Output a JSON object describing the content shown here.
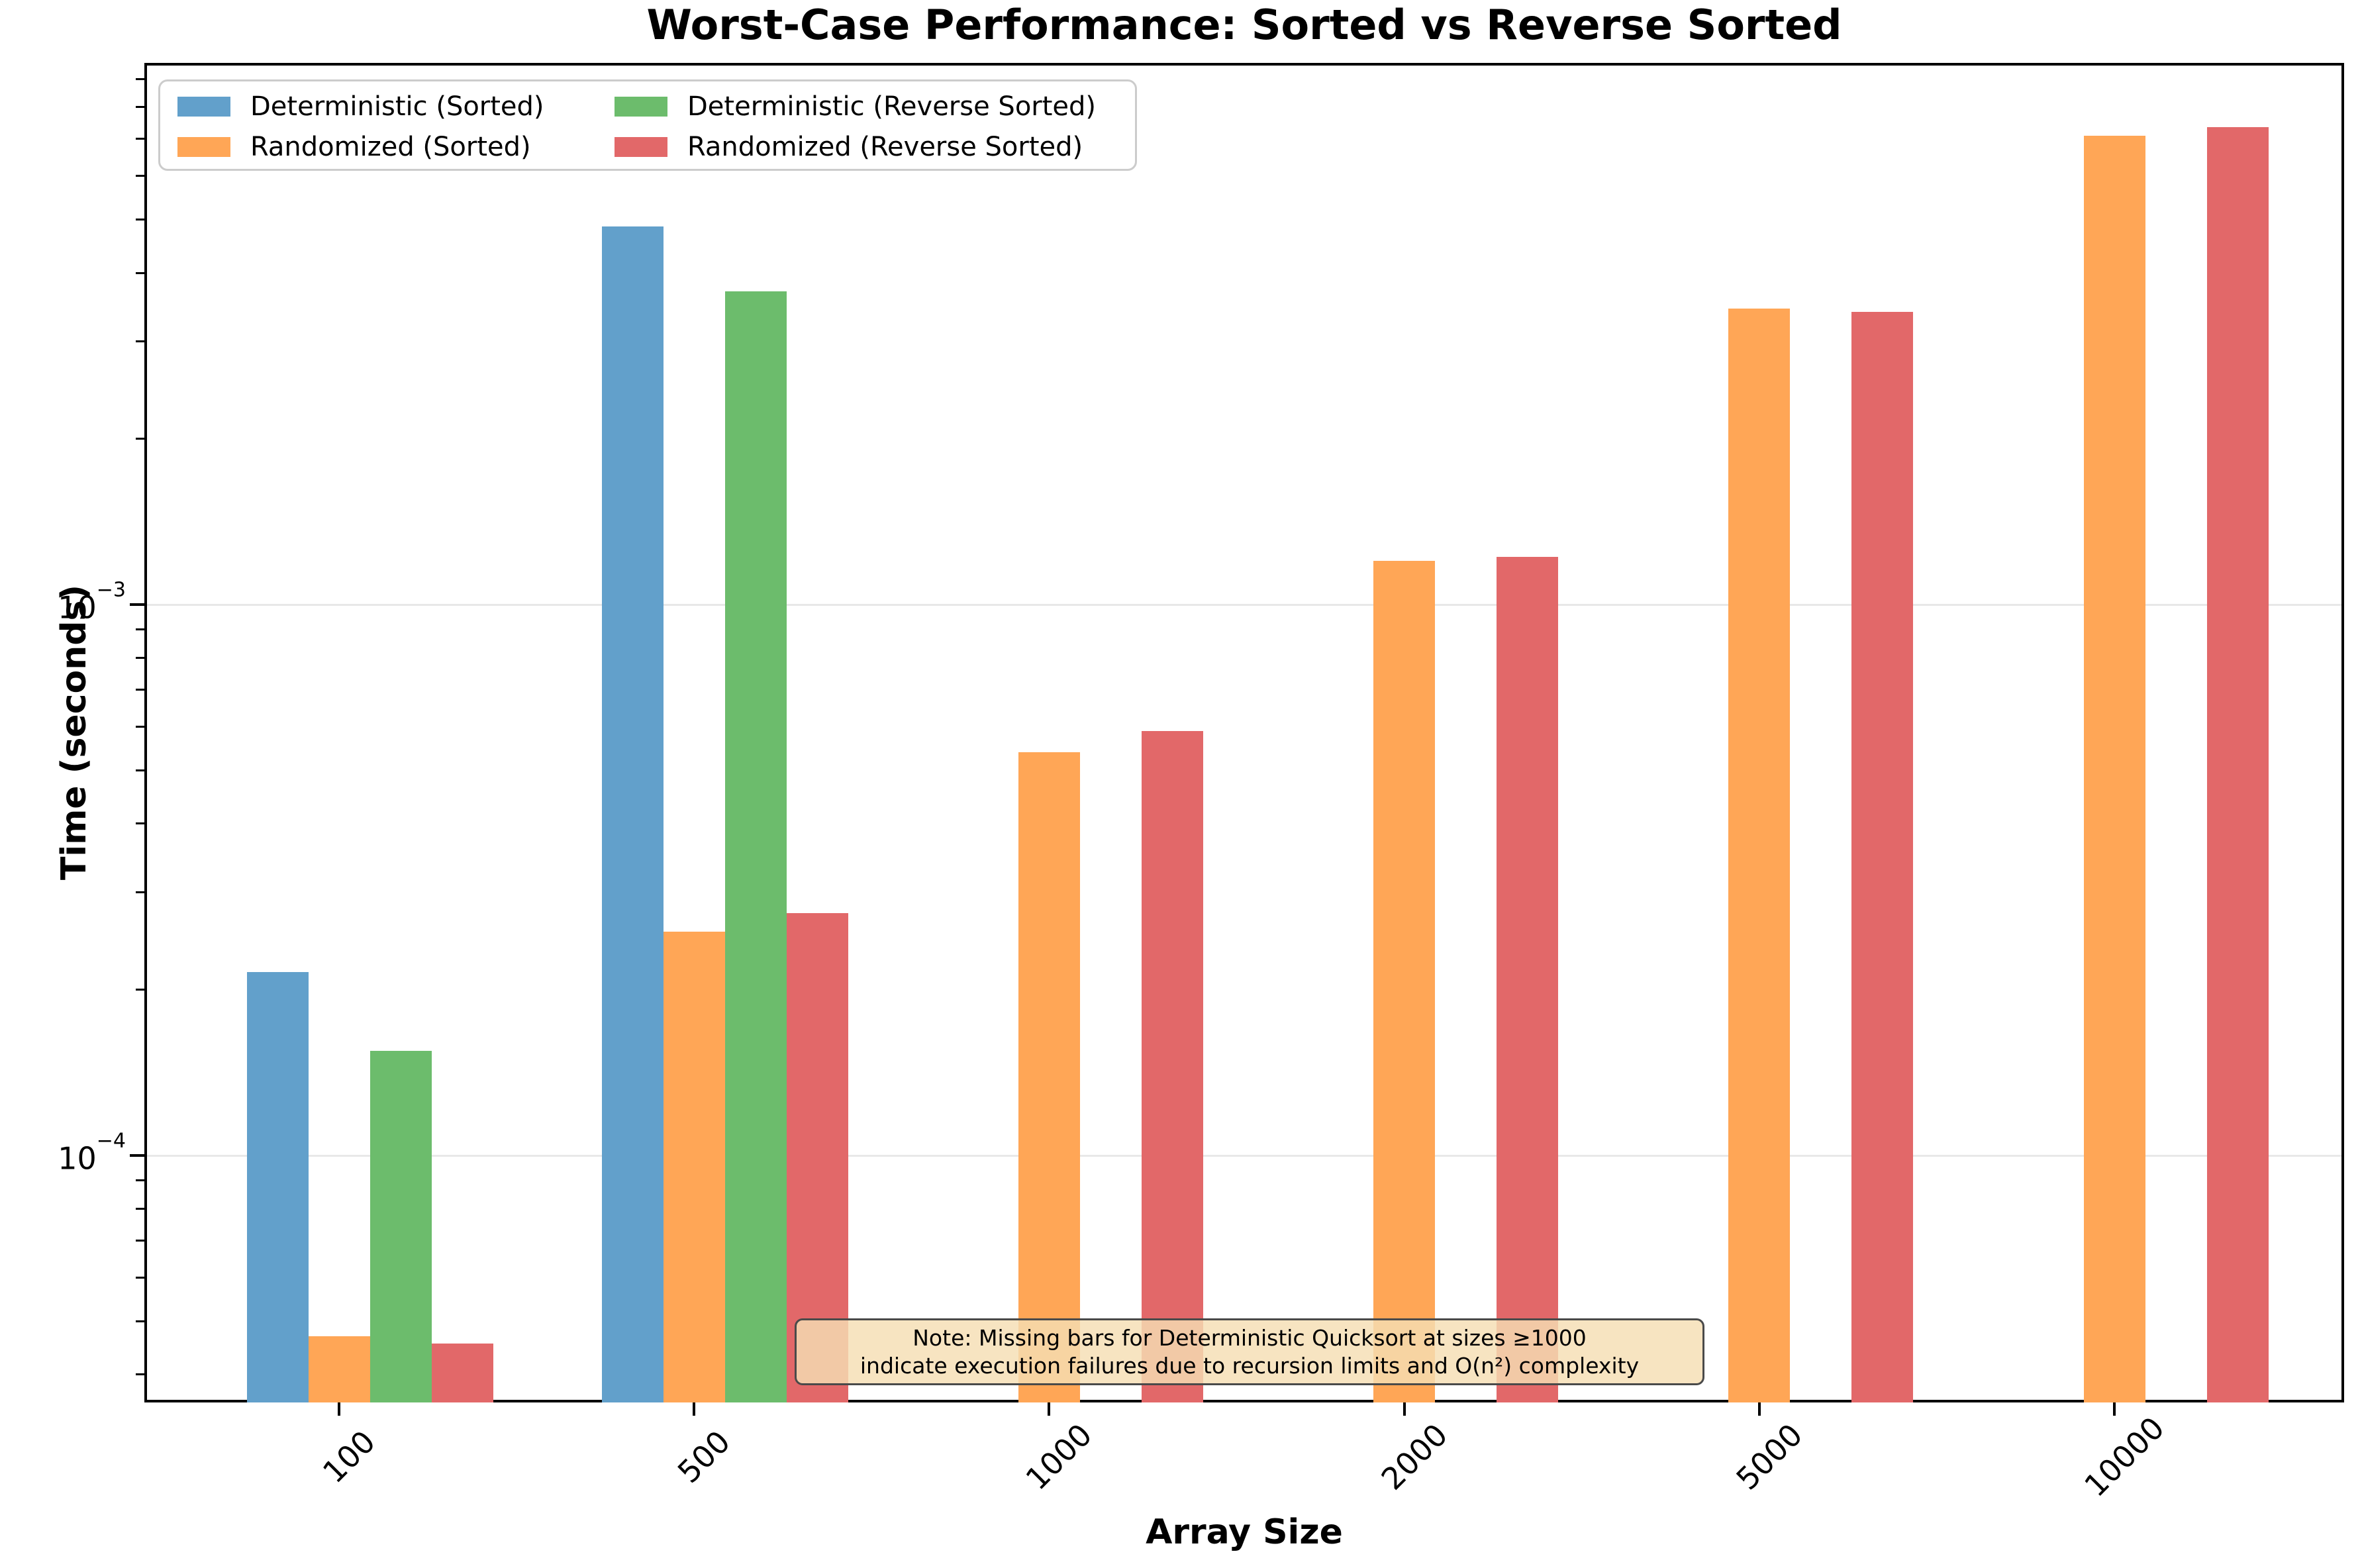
{
  "chart_data": {
    "type": "bar",
    "title": "Worst-Case Performance: Sorted vs Reverse Sorted",
    "xlabel": "Array Size",
    "ylabel": "Time (seconds)",
    "yscale": "log",
    "ylim": [
      3.56e-05,
      0.00962
    ],
    "grid": "major-y",
    "grid_color": "#e8e8e8",
    "legend_position": "upper left",
    "categories": [
      "100",
      "500",
      "1000",
      "2000",
      "5000",
      "10000"
    ],
    "series": [
      {
        "key": "deterministic-sorted",
        "name": "Deterministic (Sorted)",
        "color": "#62a0cb",
        "values": [
          0.000215,
          0.00485,
          null,
          null,
          null,
          null
        ]
      },
      {
        "key": "randomized-sorted",
        "name": "Randomized (Sorted)",
        "color": "#ffa656",
        "values": [
          4.7e-05,
          0.000255,
          0.00054,
          0.0012,
          0.00345,
          0.0071
        ]
      },
      {
        "key": "deterministic-reverse-sorted",
        "name": "Deterministic (Reverse Sorted)",
        "color": "#6cbc6c",
        "values": [
          0.000155,
          0.0037,
          null,
          null,
          null,
          null
        ]
      },
      {
        "key": "randomized-reverse-sorted",
        "name": "Randomized (Reverse Sorted)",
        "color": "#e26869",
        "values": [
          4.55e-05,
          0.000275,
          0.00059,
          0.00122,
          0.0034,
          0.00735
        ]
      }
    ],
    "legend_order": [
      0,
      2,
      1,
      3
    ],
    "y_ticks": [
      {
        "value": 0.001,
        "label_base": "10",
        "label_exp": "−3"
      },
      {
        "value": 0.0001,
        "label_base": "10",
        "label_exp": "−4"
      }
    ],
    "note_lines": [
      "Note: Missing bars for Deterministic Quicksort at sizes ≥1000",
      "indicate execution failures due to recursion limits and O(n²) complexity"
    ]
  }
}
